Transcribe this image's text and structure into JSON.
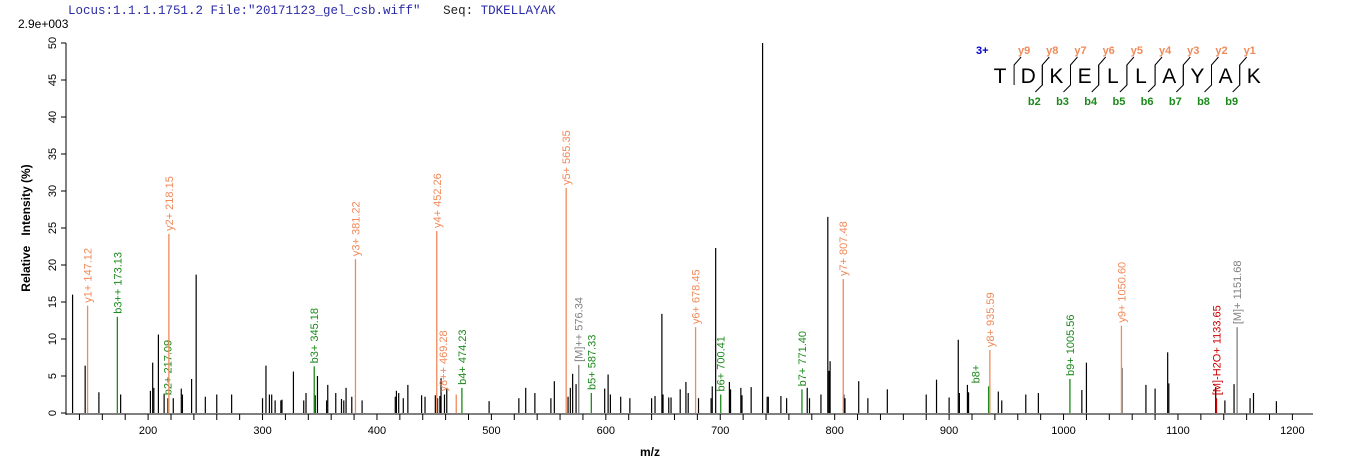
{
  "header": {
    "locus_file": "Locus:1.1.1.1751.2 File:\"20171123_gel_csb.wiff\"",
    "seq_label": "Seq: ",
    "seq_value": "TDKELLAYAK"
  },
  "chart_data": {
    "type": "bar",
    "title": "",
    "scale_label": "2.9e+003",
    "xlabel": "m/z",
    "ylabel": "Relative   Intensity (%)",
    "xlim": [
      130,
      1218
    ],
    "ylim": [
      0,
      50
    ],
    "x_ticks_labeled": [
      200,
      300,
      400,
      500,
      600,
      700,
      800,
      900,
      1000,
      1100,
      1200
    ],
    "x_minor_step": 20,
    "y_ticks": [
      0,
      5,
      10,
      15,
      20,
      25,
      30,
      35,
      40,
      45,
      50
    ],
    "colors": {
      "y": "#f08a5a",
      "b": "#1a8a1a",
      "M": "#808080",
      "loss": "#cc0000",
      "peak": "#000000",
      "charge": "#0000cc"
    },
    "peaks": [
      [
        134,
        16
      ],
      [
        145,
        6.4
      ],
      [
        157,
        2.8
      ],
      [
        176,
        2.5
      ],
      [
        202,
        3
      ],
      [
        204,
        6.8
      ],
      [
        205,
        3.4
      ],
      [
        209,
        10.6
      ],
      [
        214,
        2.5
      ],
      [
        222,
        2
      ],
      [
        229,
        3.3
      ],
      [
        230,
        2.5
      ],
      [
        238,
        4.6
      ],
      [
        242,
        18.7
      ],
      [
        250,
        2.2
      ],
      [
        260,
        2.5
      ],
      [
        273,
        2.5
      ],
      [
        300,
        2
      ],
      [
        303,
        6.4
      ],
      [
        306,
        2.5
      ],
      [
        308,
        2.5
      ],
      [
        311,
        1.7
      ],
      [
        316,
        1.7
      ],
      [
        317,
        1.8
      ],
      [
        327,
        5.6
      ],
      [
        336,
        1.7
      ],
      [
        338,
        2.7
      ],
      [
        346,
        2.4
      ],
      [
        348,
        5
      ],
      [
        356,
        1.7
      ],
      [
        357,
        3.8
      ],
      [
        364,
        2.7
      ],
      [
        369,
        1.9
      ],
      [
        371,
        1.7
      ],
      [
        373,
        3.4
      ],
      [
        378,
        2.2
      ],
      [
        387,
        1.7
      ],
      [
        416,
        2.2
      ],
      [
        417,
        3
      ],
      [
        419,
        2.7
      ],
      [
        423,
        2
      ],
      [
        427,
        3.8
      ],
      [
        439,
        2.4
      ],
      [
        442,
        2.2
      ],
      [
        451,
        2.4
      ],
      [
        453,
        2
      ],
      [
        455,
        2.3
      ],
      [
        456,
        4.7
      ],
      [
        459,
        2.5
      ],
      [
        461,
        3.4
      ],
      [
        498,
        1.6
      ],
      [
        524,
        2
      ],
      [
        530,
        3.4
      ],
      [
        538,
        2.7
      ],
      [
        552,
        2
      ],
      [
        555,
        4.3
      ],
      [
        567,
        2.2
      ],
      [
        569,
        3.4
      ],
      [
        571,
        5.3
      ],
      [
        574,
        3.9
      ],
      [
        599,
        3.3
      ],
      [
        602,
        5.2
      ],
      [
        604,
        2.5
      ],
      [
        613,
        2.2
      ],
      [
        621,
        2
      ],
      [
        640,
        2
      ],
      [
        643,
        2.3
      ],
      [
        649,
        13.4
      ],
      [
        650,
        2.5
      ],
      [
        655,
        2.1
      ],
      [
        657,
        2.1
      ],
      [
        665,
        3.2
      ],
      [
        670,
        4.2
      ],
      [
        672,
        2.7
      ],
      [
        681,
        2
      ],
      [
        692,
        2
      ],
      [
        693,
        3.6
      ],
      [
        696,
        22.3
      ],
      [
        708,
        4.2
      ],
      [
        709,
        3.2
      ],
      [
        718,
        3.4
      ],
      [
        719,
        2.4
      ],
      [
        727,
        3.5
      ],
      [
        737,
        50
      ],
      [
        741,
        2.2
      ],
      [
        742,
        2.2
      ],
      [
        753,
        2.3
      ],
      [
        758,
        2
      ],
      [
        776,
        3.4
      ],
      [
        778,
        2
      ],
      [
        788,
        2.5
      ],
      [
        794,
        26.5
      ],
      [
        795,
        5.7
      ],
      [
        796,
        7
      ],
      [
        808,
        2.5
      ],
      [
        809,
        2
      ],
      [
        821,
        4.3
      ],
      [
        829,
        2
      ],
      [
        846,
        3.2
      ],
      [
        880,
        2.5
      ],
      [
        889,
        4.5
      ],
      [
        900,
        2.1
      ],
      [
        908,
        9.9
      ],
      [
        909,
        2.7
      ],
      [
        916,
        3.8
      ],
      [
        917,
        2.8
      ],
      [
        943,
        2.9
      ],
      [
        946,
        1.7
      ],
      [
        967,
        2.5
      ],
      [
        978,
        2.7
      ],
      [
        1016,
        3.1
      ],
      [
        1020,
        6.8
      ],
      [
        1051,
        6.1
      ],
      [
        1072,
        3.8
      ],
      [
        1080,
        3.3
      ],
      [
        1091,
        8.2
      ],
      [
        1092,
        4
      ],
      [
        1133,
        3.5
      ],
      [
        1141,
        1.7
      ],
      [
        1149,
        3.9
      ],
      [
        1163,
        2
      ],
      [
        1166,
        2.7
      ],
      [
        1186,
        1.6
      ]
    ],
    "annotated_peaks": [
      {
        "mz": 147.12,
        "intensity": 14.5,
        "type": "y",
        "label": "y1+ 147.12"
      },
      {
        "mz": 173.13,
        "intensity": 13,
        "type": "b",
        "label": "b3++ 173.13"
      },
      {
        "mz": 217.09,
        "intensity": 2,
        "type": "b",
        "label": "b2+ 217.09"
      },
      {
        "mz": 218.15,
        "intensity": 24.2,
        "type": "y",
        "label": "y2+ 218.15"
      },
      {
        "mz": 345.18,
        "intensity": 6.3,
        "type": "b",
        "label": "b3+ 345.18"
      },
      {
        "mz": 381.22,
        "intensity": 20.8,
        "type": "y",
        "label": "y3+ 381.22"
      },
      {
        "mz": 452.26,
        "intensity": 24.6,
        "type": "y",
        "label": "y4+ 452.26"
      },
      {
        "mz": 469.28,
        "intensity": 2.5,
        "type": "y",
        "label": "y8++ 469.28"
      },
      {
        "mz": 474.23,
        "intensity": 3.4,
        "type": "b",
        "label": "b4+ 474.23"
      },
      {
        "mz": 565.35,
        "intensity": 30.4,
        "type": "y",
        "label": "y5+ 565.35"
      },
      {
        "mz": 576.34,
        "intensity": 6.5,
        "type": "M",
        "label": "[M]++ 576.34"
      },
      {
        "mz": 587.33,
        "intensity": 2.7,
        "type": "b",
        "label": "b5+ 587.33"
      },
      {
        "mz": 678.45,
        "intensity": 11.6,
        "type": "y",
        "label": "y6+ 678.45"
      },
      {
        "mz": 700.41,
        "intensity": 2.5,
        "type": "b",
        "label": "b6+ 700.41"
      },
      {
        "mz": 771.4,
        "intensity": 3.2,
        "type": "b",
        "label": "b7+ 771.40"
      },
      {
        "mz": 807.48,
        "intensity": 18.1,
        "type": "y",
        "label": "y7+ 807.48"
      },
      {
        "mz": 934.5,
        "intensity": 3.6,
        "type": "b",
        "label": "b8+"
      },
      {
        "mz": 935.59,
        "intensity": 8.5,
        "type": "y",
        "label": "y8+ 935.59"
      },
      {
        "mz": 1005.56,
        "intensity": 4.6,
        "type": "b",
        "label": "b9+ 1005.56"
      },
      {
        "mz": 1050.6,
        "intensity": 11.8,
        "type": "y",
        "label": "y9+ 1050.60"
      },
      {
        "mz": 1133.65,
        "intensity": 2,
        "type": "loss",
        "label": "[M]-H2O+ 1133.65"
      },
      {
        "mz": 1151.68,
        "intensity": 11.6,
        "type": "M",
        "label": "[M]+ 1151.68"
      }
    ],
    "sequence_map": {
      "charge": "3+",
      "residues": [
        "T",
        "D",
        "K",
        "E",
        "L",
        "L",
        "A",
        "Y",
        "A",
        "K"
      ],
      "y_ions": [
        "y9",
        "y8",
        "y7",
        "y6",
        "y5",
        "y4",
        "y3",
        "y2",
        "y1"
      ],
      "b_ions": [
        "",
        "b2",
        "b3",
        "b4",
        "b5",
        "b6",
        "b7",
        "b8",
        "b9"
      ]
    }
  }
}
